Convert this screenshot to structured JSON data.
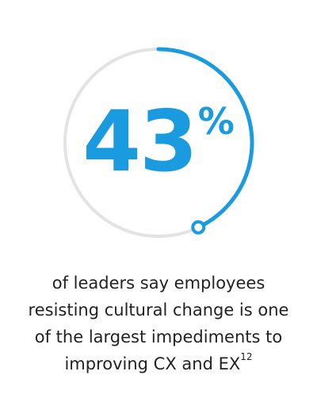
{
  "colors": {
    "accent": "#1a9be0",
    "track": "#e3e3e3",
    "text": "#222222"
  },
  "stat": {
    "value": "43",
    "unit": "%"
  },
  "caption": {
    "lines": [
      "of leaders say employees",
      "resisting cultural change is one",
      "of the largest impediments to",
      "improving CX and EX"
    ],
    "footnote": "12"
  },
  "chart_data": {
    "type": "pie",
    "title": "",
    "categories": [
      "leaders",
      ""
    ],
    "values": [
      43,
      57
    ],
    "unit": "%"
  }
}
